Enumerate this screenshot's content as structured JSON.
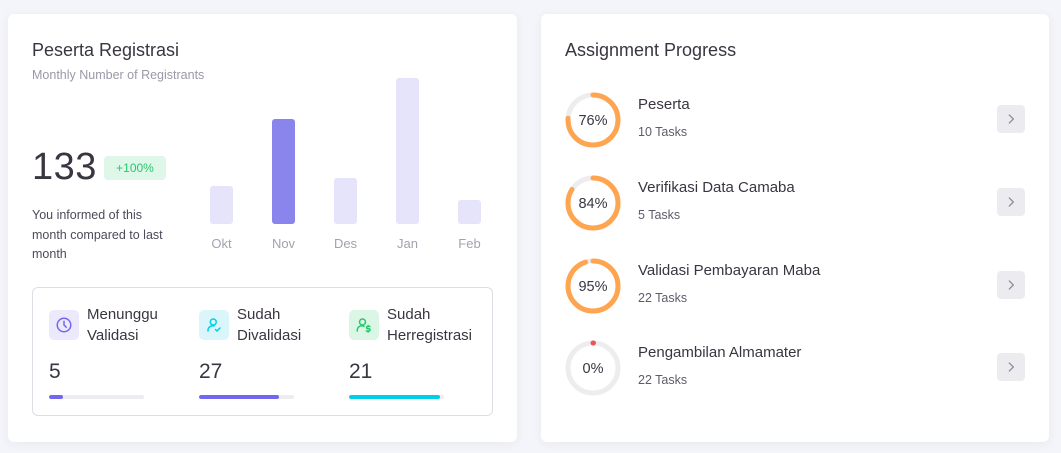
{
  "registrasi": {
    "title": "Peserta Registrasi",
    "subtitle": "Monthly Number of Registrants",
    "total": "133",
    "change_badge": "+100%",
    "compare_text": "You informed of this month compared to last month",
    "colors": {
      "bar_active": "#8a84ed",
      "bar_inactive": "#e6e4fb",
      "badge_bg": "#dff7e9",
      "badge_text": "#28c76f"
    }
  },
  "chart_data": {
    "type": "bar",
    "categories": [
      "Okt",
      "Nov",
      "Des",
      "Jan",
      "Feb"
    ],
    "values": [
      38,
      105,
      46,
      146,
      24
    ],
    "highlight": "Nov",
    "ylim": [
      0,
      150
    ],
    "title": "",
    "xlabel": "",
    "ylabel": "",
    "grid": false
  },
  "stats": [
    {
      "label": "Menunggu Validasi",
      "value": "5",
      "progress": 0.15,
      "color": "#7367f0",
      "icon": "clock-icon",
      "icon_bg": "#ece9fd"
    },
    {
      "label": "Sudah Divalidasi",
      "value": "27",
      "progress": 0.84,
      "color": "#7367f0",
      "icon": "user-check-icon",
      "icon_bg": "#dbf6fa"
    },
    {
      "label": "Sudah Herregistrasi",
      "value": "21",
      "progress": 0.96,
      "color": "#00cfe8",
      "icon": "user-dollar-icon",
      "icon_bg": "#dcf6e6"
    }
  ],
  "assignment": {
    "title": "Assignment Progress",
    "ring_color": "#ffa44f",
    "ring_track": "#ededf0",
    "items": [
      {
        "percent": 76,
        "percent_label": "76%",
        "title": "Peserta",
        "tasks": "10 Tasks"
      },
      {
        "percent": 84,
        "percent_label": "84%",
        "title": "Verifikasi Data Camaba",
        "tasks": "5 Tasks"
      },
      {
        "percent": 95,
        "percent_label": "95%",
        "title": "Validasi Pembayaran Maba",
        "tasks": "22 Tasks"
      },
      {
        "percent": 0,
        "percent_label": "0%",
        "title": "Pengambilan Almamater",
        "tasks": "22 Tasks"
      }
    ],
    "icons": {
      "row_button": "chevron-right-icon"
    }
  }
}
